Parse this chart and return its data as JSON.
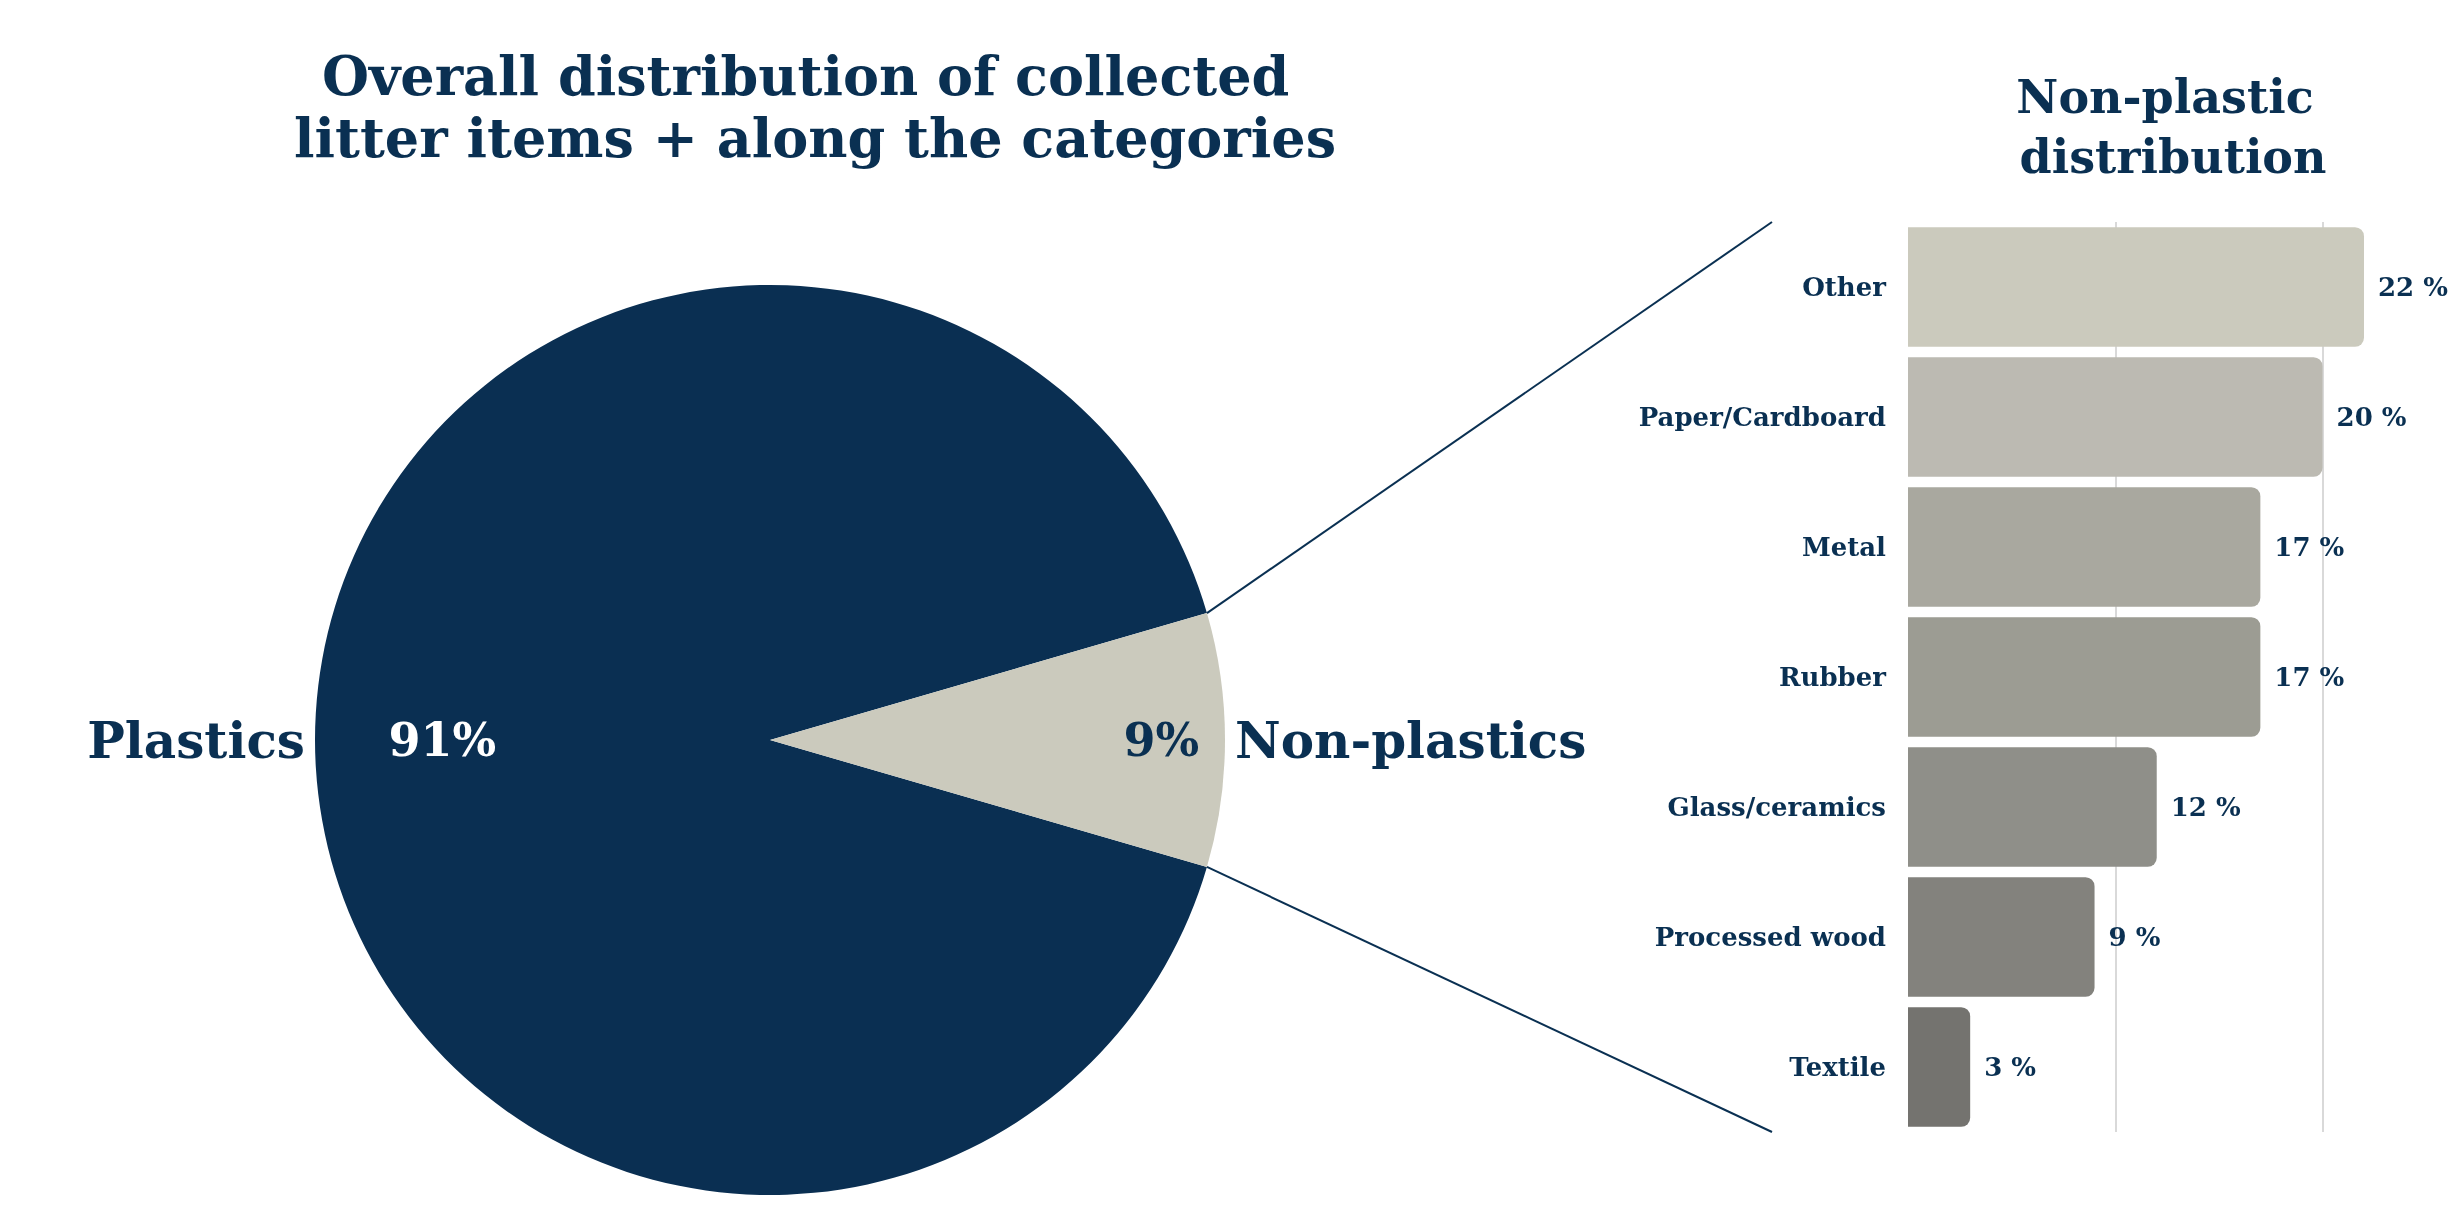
{
  "chart_data": [
    {
      "type": "pie",
      "title": "Overall distribution of collected litter items + along the categories",
      "categories": [
        "Plastics",
        "Non-plastics"
      ],
      "values": [
        91,
        9
      ],
      "value_labels": [
        "91%",
        "9%"
      ],
      "colors": [
        "#0a2f52",
        "#cbcabd"
      ],
      "legend": false
    },
    {
      "type": "bar",
      "orientation": "horizontal",
      "title": "Non-plastic distribution",
      "categories": [
        "Other",
        "Paper/Cardboard",
        "Metal",
        "Rubber",
        "Glass/ceramics",
        "Processed wood",
        "Textile"
      ],
      "values": [
        22,
        20,
        17,
        17,
        12,
        9,
        3
      ],
      "value_labels": [
        "22 %",
        "20 %",
        "17 %",
        "17 %",
        "12 %",
        "9 %",
        "3 %"
      ],
      "colors": [
        "#cbcabd",
        "#bcbab2",
        "#a9a89f",
        "#9c9c93",
        "#8f8f89",
        "#83827d",
        "#74736f"
      ],
      "ref_lines": [
        {
          "axis": "x",
          "value": 10,
          "color": "#d9d9d9"
        },
        {
          "axis": "x",
          "value": 20,
          "color": "#d9d9d9"
        }
      ],
      "tick_labels": "y",
      "legend": false
    }
  ]
}
